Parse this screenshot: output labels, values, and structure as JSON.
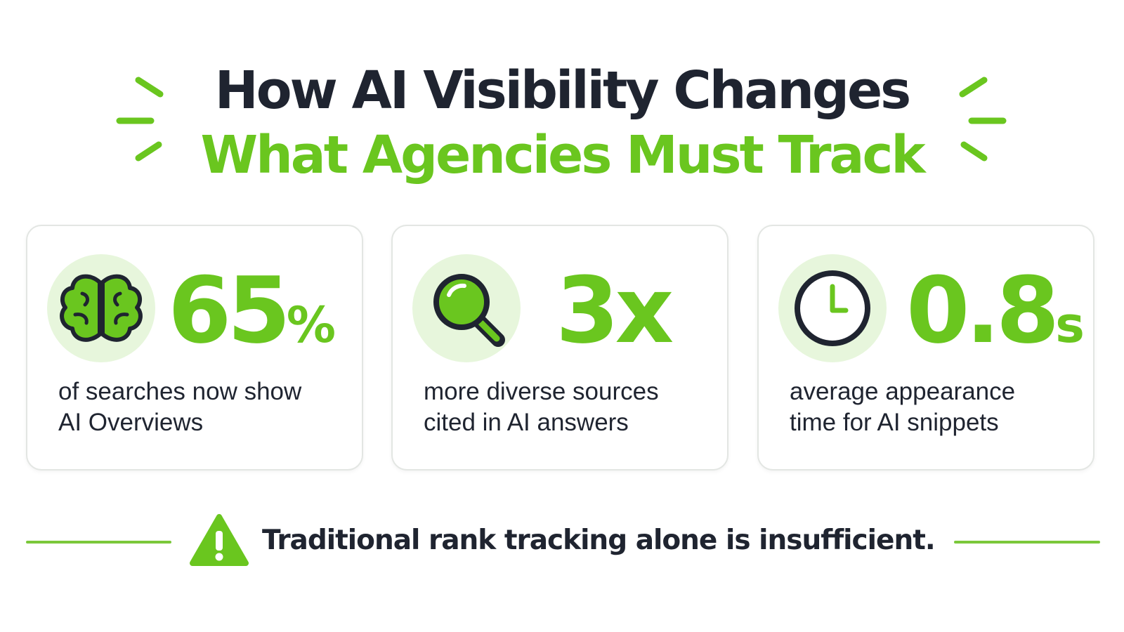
{
  "title": {
    "line1": "How AI Visibility Changes",
    "line2": "What Agencies Must Track"
  },
  "colors": {
    "accent": "#6ac61f",
    "dark": "#1f2430",
    "icon_circle": "#e7f6dc",
    "card_border": "#e3e6e3"
  },
  "stats": [
    {
      "icon": "brain-icon",
      "value": "65",
      "unit": "%",
      "description_line1": "of searches now show",
      "description_line2": "AI Overviews"
    },
    {
      "icon": "magnifier-icon",
      "value": "3x",
      "unit": "",
      "description_line1": "more diverse sources",
      "description_line2": "cited in AI answers"
    },
    {
      "icon": "clock-icon",
      "value": "0.8",
      "unit": "s",
      "description_line1": "average appearance",
      "description_line2": "time for AI snippets"
    }
  ],
  "footer": {
    "icon": "warning-icon",
    "text": "Traditional rank tracking alone is insufficient."
  }
}
